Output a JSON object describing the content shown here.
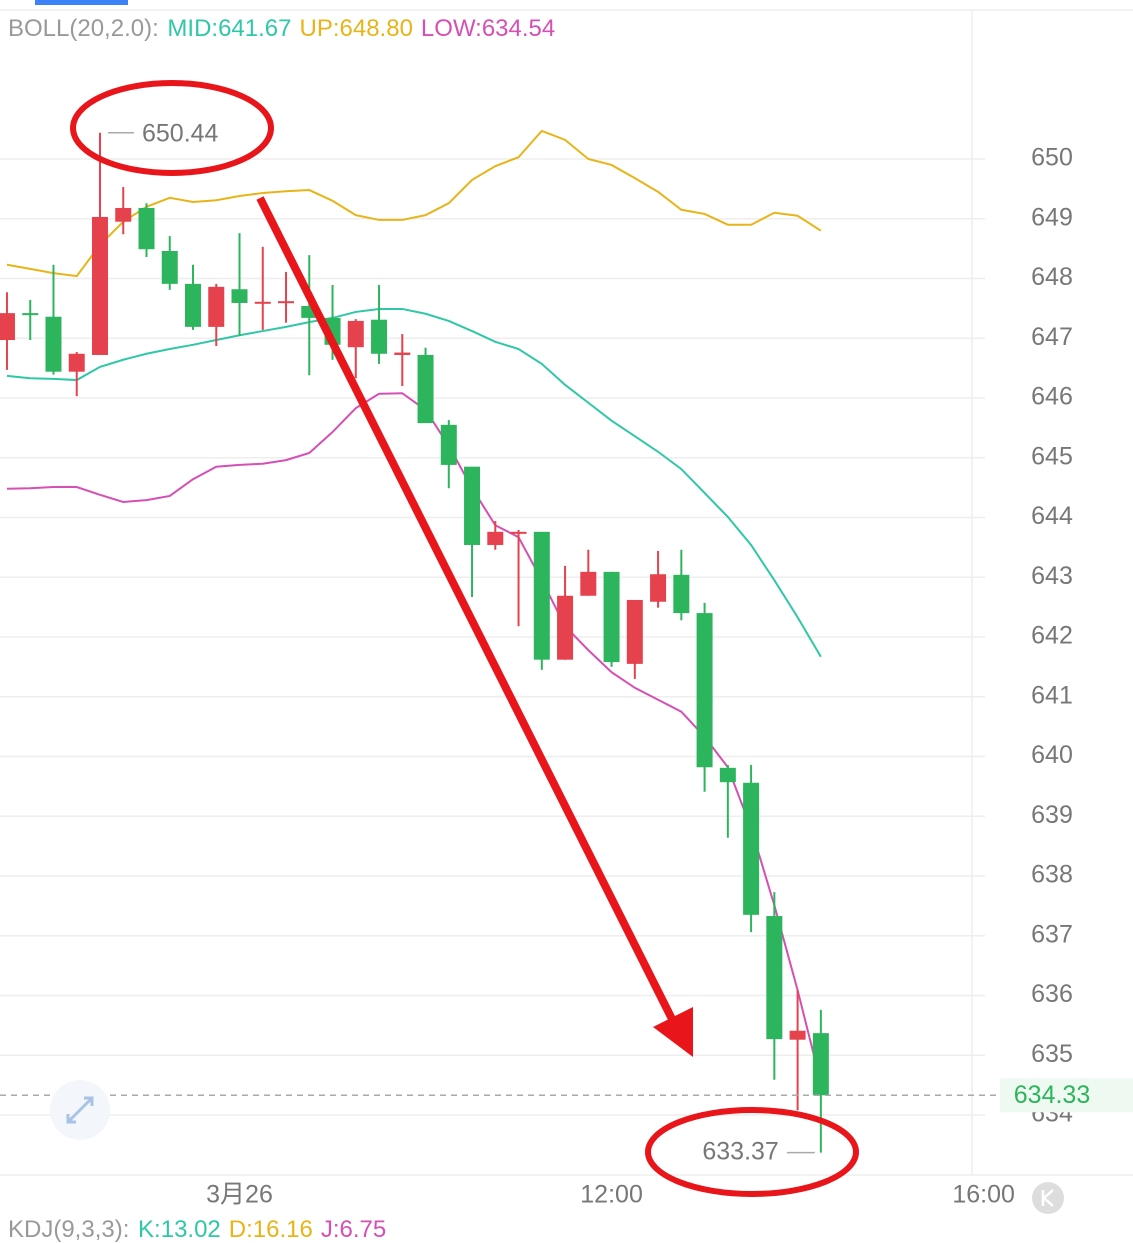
{
  "chart_data": {
    "type": "candlestick",
    "indicator": "BOLL(20,2.0):",
    "up_color": "#e5424d",
    "down_color": "#2db55d",
    "open": [
      646.97,
      647.42,
      647.36,
      646.44,
      646.72,
      648.95,
      649.18,
      648.46,
      647.91,
      647.19,
      647.82,
      647.59,
      647.6,
      647.54,
      647.34,
      646.85,
      647.31,
      646.72,
      646.72,
      645.55,
      644.85,
      643.54,
      643.74,
      643.76,
      641.62,
      642.69,
      643.09,
      641.55,
      642.59,
      643.04,
      642.4,
      639.81,
      639.56,
      637.33,
      635.26,
      635.37
    ],
    "high": [
      647.77,
      647.64,
      648.23,
      646.77,
      650.44,
      649.53,
      649.26,
      648.71,
      648.23,
      647.91,
      648.76,
      648.53,
      648.11,
      648.39,
      647.89,
      647.32,
      647.89,
      647.07,
      646.84,
      645.63,
      644.85,
      643.94,
      643.79,
      643.76,
      643.19,
      643.46,
      643.09,
      642.62,
      643.44,
      643.46,
      642.57,
      639.86,
      639.86,
      637.73,
      636.09,
      635.76
    ],
    "low": [
      646.47,
      646.97,
      646.39,
      646.03,
      646.72,
      648.74,
      648.36,
      647.81,
      647.14,
      646.87,
      647.04,
      647.14,
      647.26,
      646.38,
      646.64,
      646.33,
      646.57,
      646.2,
      645.58,
      644.49,
      642.67,
      643.46,
      642.18,
      641.45,
      641.62,
      642.69,
      641.5,
      641.3,
      642.49,
      642.28,
      639.41,
      638.64,
      637.06,
      634.59,
      634.08,
      633.37
    ],
    "close": [
      647.42,
      647.4,
      646.44,
      646.74,
      649.03,
      649.18,
      648.49,
      647.91,
      647.19,
      647.86,
      647.59,
      647.61,
      647.62,
      647.34,
      646.89,
      647.29,
      646.74,
      646.76,
      645.58,
      644.88,
      643.54,
      643.76,
      643.76,
      641.62,
      642.69,
      643.09,
      641.58,
      642.62,
      643.05,
      642.4,
      639.82,
      639.57,
      637.35,
      635.27,
      635.41,
      634.33
    ],
    "series": [
      {
        "name": "MID:641.67",
        "color": "#2fc8a6",
        "values": [
          646.37,
          646.33,
          646.32,
          646.3,
          646.52,
          646.64,
          646.74,
          646.82,
          646.89,
          646.97,
          647.05,
          647.12,
          647.19,
          647.27,
          647.34,
          647.44,
          647.49,
          647.49,
          647.41,
          647.29,
          647.12,
          646.94,
          646.82,
          646.57,
          646.22,
          645.92,
          645.62,
          645.36,
          645.1,
          644.81,
          644.41,
          644.01,
          643.54,
          642.95,
          642.33,
          641.67
        ]
      },
      {
        "name": "UP:648.80",
        "color": "#e8b418",
        "values": [
          648.23,
          648.16,
          648.09,
          648.04,
          648.56,
          648.95,
          649.2,
          649.35,
          649.28,
          649.31,
          649.38,
          649.43,
          649.46,
          649.48,
          649.3,
          649.06,
          648.98,
          648.98,
          649.06,
          649.26,
          649.65,
          649.88,
          650.03,
          650.47,
          650.32,
          650.0,
          649.9,
          649.68,
          649.45,
          649.15,
          649.08,
          648.9,
          648.9,
          649.1,
          649.05,
          648.8
        ]
      },
      {
        "name": "LOW:634.54",
        "color": "#d54fb4",
        "values": [
          644.48,
          644.49,
          644.51,
          644.51,
          644.38,
          644.26,
          644.29,
          644.36,
          644.64,
          644.85,
          644.88,
          644.9,
          644.96,
          645.08,
          645.43,
          645.83,
          646.07,
          646.08,
          645.8,
          645.2,
          644.49,
          643.87,
          643.67,
          642.95,
          642.18,
          641.78,
          641.41,
          641.15,
          640.95,
          640.75,
          640.33,
          639.82,
          638.8,
          637.51,
          636.09,
          634.54
        ]
      }
    ],
    "ylim": [
      633,
      652.5
    ],
    "yticks": [
      634,
      635,
      636,
      637,
      638,
      639,
      640,
      641,
      642,
      643,
      644,
      645,
      646,
      647,
      648,
      649,
      650
    ],
    "xlim": [
      -0.3,
      41.5
    ],
    "xticks": [
      {
        "value": 10,
        "label": "3月26"
      },
      {
        "value": 26,
        "label": "12:00"
      },
      {
        "value": 42,
        "label": "16:00"
      }
    ],
    "grid": true,
    "kdj": {
      "title": "KDJ(9,3,3):",
      "items": [
        {
          "text": "K:13.02",
          "color": "#2fc8a6"
        },
        {
          "text": "D:16.16",
          "color": "#e8b418"
        },
        {
          "text": "J:6.75",
          "color": "#d54fb4"
        }
      ]
    }
  }
}
